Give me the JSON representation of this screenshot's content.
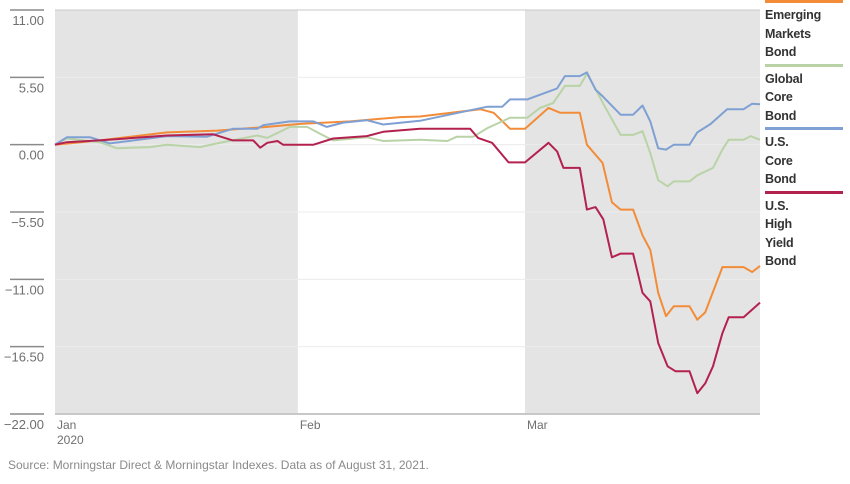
{
  "chart_data": {
    "type": "line",
    "title": "",
    "xlabel": "",
    "ylabel": "",
    "x_unit": "calendar days since Jan 1, 2020",
    "xlim": [
      0,
      90
    ],
    "ylim": [
      -22,
      11
    ],
    "yticks": [
      11,
      5.5,
      0,
      -5.5,
      -11,
      -16.5,
      -22
    ],
    "ytick_labels": [
      "11.00",
      "5.50",
      "0.00",
      "−5.50",
      "−11.00",
      "−16.50",
      "−22.00"
    ],
    "xticks": [
      {
        "day": 0,
        "label": "Jan",
        "sublabel": "2020"
      },
      {
        "day": 31,
        "label": "Feb",
        "sublabel": ""
      },
      {
        "day": 60,
        "label": "Mar",
        "sublabel": ""
      }
    ],
    "shaded_periods": [
      [
        0,
        31
      ],
      [
        60,
        90
      ]
    ],
    "grid": true,
    "legend_placement": "right",
    "series": [
      {
        "name": "Emerging Markets Bond",
        "label_lines": [
          "Emerging",
          "Markets",
          "Bond"
        ],
        "color": "#F28C38",
        "points": [
          [
            0,
            0
          ],
          [
            5.7,
            0.35
          ],
          [
            14.3,
            1.0
          ],
          [
            20.7,
            1.15
          ],
          [
            27.1,
            1.45
          ],
          [
            31.3,
            1.7
          ],
          [
            37.7,
            1.9
          ],
          [
            44.1,
            2.25
          ],
          [
            46.6,
            2.3
          ],
          [
            54.3,
            2.9
          ],
          [
            56,
            2.6
          ],
          [
            58.1,
            1.3
          ],
          [
            60,
            1.3
          ],
          [
            63,
            3.0
          ],
          [
            64.5,
            2.6
          ],
          [
            67,
            2.6
          ],
          [
            67.9,
            0
          ],
          [
            69.9,
            -1.5
          ],
          [
            71.1,
            -4.7
          ],
          [
            72.2,
            -5.3
          ],
          [
            73.8,
            -5.3
          ],
          [
            75,
            -7.4
          ],
          [
            76,
            -8.6
          ],
          [
            77,
            -12.1
          ],
          [
            78,
            -14
          ],
          [
            79,
            -13.2
          ],
          [
            81,
            -13.2
          ],
          [
            82,
            -14.3
          ],
          [
            83,
            -13.7
          ],
          [
            85.2,
            -10
          ],
          [
            87.9,
            -10
          ],
          [
            89,
            -10.4
          ],
          [
            90,
            -9.9
          ]
        ]
      },
      {
        "name": "Global Core Bond",
        "label_lines": [
          "Global",
          "Core",
          "Bond"
        ],
        "color": "#B9D3A7",
        "points": [
          [
            0,
            0
          ],
          [
            1.5,
            0.5
          ],
          [
            5.7,
            0.2
          ],
          [
            7.9,
            -0.3
          ],
          [
            12.1,
            -0.2
          ],
          [
            14.3,
            0
          ],
          [
            18.5,
            -0.2
          ],
          [
            20.7,
            0.1
          ],
          [
            25.8,
            0.75
          ],
          [
            27.1,
            0.55
          ],
          [
            30,
            1.45
          ],
          [
            32.2,
            1.45
          ],
          [
            33.8,
            0.9
          ],
          [
            35.5,
            0.35
          ],
          [
            39.8,
            0.6
          ],
          [
            41.9,
            0.3
          ],
          [
            46.6,
            0.4
          ],
          [
            50.1,
            0.3
          ],
          [
            51.3,
            0.65
          ],
          [
            53.4,
            0.65
          ],
          [
            55.2,
            1.35
          ],
          [
            58.1,
            2.2
          ],
          [
            60.3,
            2.2
          ],
          [
            61.9,
            3.0
          ],
          [
            63.6,
            3.4
          ],
          [
            65.1,
            4.8
          ],
          [
            67,
            4.8
          ],
          [
            67.9,
            5.8
          ],
          [
            69.2,
            4.3
          ],
          [
            70.2,
            3.1
          ],
          [
            72.2,
            0.8
          ],
          [
            73.8,
            0.8
          ],
          [
            75,
            1.1
          ],
          [
            76,
            -0.7
          ],
          [
            77,
            -2.9
          ],
          [
            78.2,
            -3.4
          ],
          [
            79,
            -3.0
          ],
          [
            81,
            -3.0
          ],
          [
            82,
            -2.5
          ],
          [
            84,
            -1.9
          ],
          [
            85.2,
            -0.4
          ],
          [
            86,
            0.4
          ],
          [
            87.9,
            0.4
          ],
          [
            88.8,
            0.7
          ],
          [
            90,
            0.4
          ]
        ]
      },
      {
        "name": "U.S. Core Bond",
        "label_lines": [
          "U.S.",
          "Core",
          "Bond"
        ],
        "color": "#7FA0D3",
        "points": [
          [
            0,
            0
          ],
          [
            1.5,
            0.6
          ],
          [
            4.5,
            0.6
          ],
          [
            7,
            0.1
          ],
          [
            14.3,
            0.7
          ],
          [
            19.4,
            0.65
          ],
          [
            22.7,
            1.3
          ],
          [
            25.8,
            1.3
          ],
          [
            26.6,
            1.6
          ],
          [
            30,
            1.9
          ],
          [
            33,
            1.9
          ],
          [
            34.7,
            1.45
          ],
          [
            36.8,
            1.8
          ],
          [
            39.8,
            2.0
          ],
          [
            41.9,
            1.65
          ],
          [
            46.6,
            1.95
          ],
          [
            55.2,
            3.1
          ],
          [
            57.1,
            3.1
          ],
          [
            58.1,
            3.7
          ],
          [
            60.3,
            3.7
          ],
          [
            64.1,
            4.6
          ],
          [
            65.1,
            5.6
          ],
          [
            67,
            5.6
          ],
          [
            67.9,
            5.9
          ],
          [
            69,
            4.5
          ],
          [
            70,
            3.9
          ],
          [
            72.2,
            2.45
          ],
          [
            73.8,
            2.45
          ],
          [
            75,
            3.2
          ],
          [
            76,
            1.9
          ],
          [
            77,
            -0.3
          ],
          [
            78,
            -0.4
          ],
          [
            79,
            0
          ],
          [
            81,
            0
          ],
          [
            82,
            1.0
          ],
          [
            83.7,
            1.7
          ],
          [
            85.8,
            2.9
          ],
          [
            87.9,
            2.9
          ],
          [
            89,
            3.35
          ],
          [
            90,
            3.3
          ]
        ]
      },
      {
        "name": "U.S. High Yield Bond",
        "label_lines": [
          "U.S.",
          "High",
          "Yield",
          "Bond"
        ],
        "color": "#B3214F",
        "points": [
          [
            0,
            0
          ],
          [
            1.5,
            0.2
          ],
          [
            5.7,
            0.35
          ],
          [
            14.3,
            0.75
          ],
          [
            20.2,
            0.85
          ],
          [
            22.7,
            0.35
          ],
          [
            25.3,
            0.35
          ],
          [
            26.2,
            -0.25
          ],
          [
            27.1,
            0.15
          ],
          [
            28.4,
            0.3
          ],
          [
            29.1,
            0
          ],
          [
            33,
            0
          ],
          [
            35.5,
            0.5
          ],
          [
            39.8,
            0.7
          ],
          [
            41.9,
            1.05
          ],
          [
            46.6,
            1.3
          ],
          [
            53,
            1.3
          ],
          [
            54,
            0.55
          ],
          [
            55.8,
            0.15
          ],
          [
            57.9,
            -1.45
          ],
          [
            60,
            -1.45
          ],
          [
            63,
            0.15
          ],
          [
            64.1,
            -0.55
          ],
          [
            64.9,
            -1.9
          ],
          [
            67,
            -1.9
          ],
          [
            67.9,
            -5.3
          ],
          [
            69,
            -5.1
          ],
          [
            70,
            -6.1
          ],
          [
            71.1,
            -9.2
          ],
          [
            72.2,
            -8.9
          ],
          [
            73.8,
            -8.9
          ],
          [
            75,
            -12.1
          ],
          [
            76,
            -12.8
          ],
          [
            77,
            -16.2
          ],
          [
            78.2,
            -18.1
          ],
          [
            79.2,
            -18.5
          ],
          [
            81,
            -18.5
          ],
          [
            82,
            -20.3
          ],
          [
            83,
            -19.5
          ],
          [
            84,
            -18.1
          ],
          [
            85.2,
            -15.4
          ],
          [
            86,
            -14.1
          ],
          [
            87.9,
            -14.1
          ],
          [
            90,
            -12.9
          ]
        ]
      }
    ]
  },
  "source": "Source: Morningstar Direct & Morningstar Indexes. Data as of August 31, 2021."
}
